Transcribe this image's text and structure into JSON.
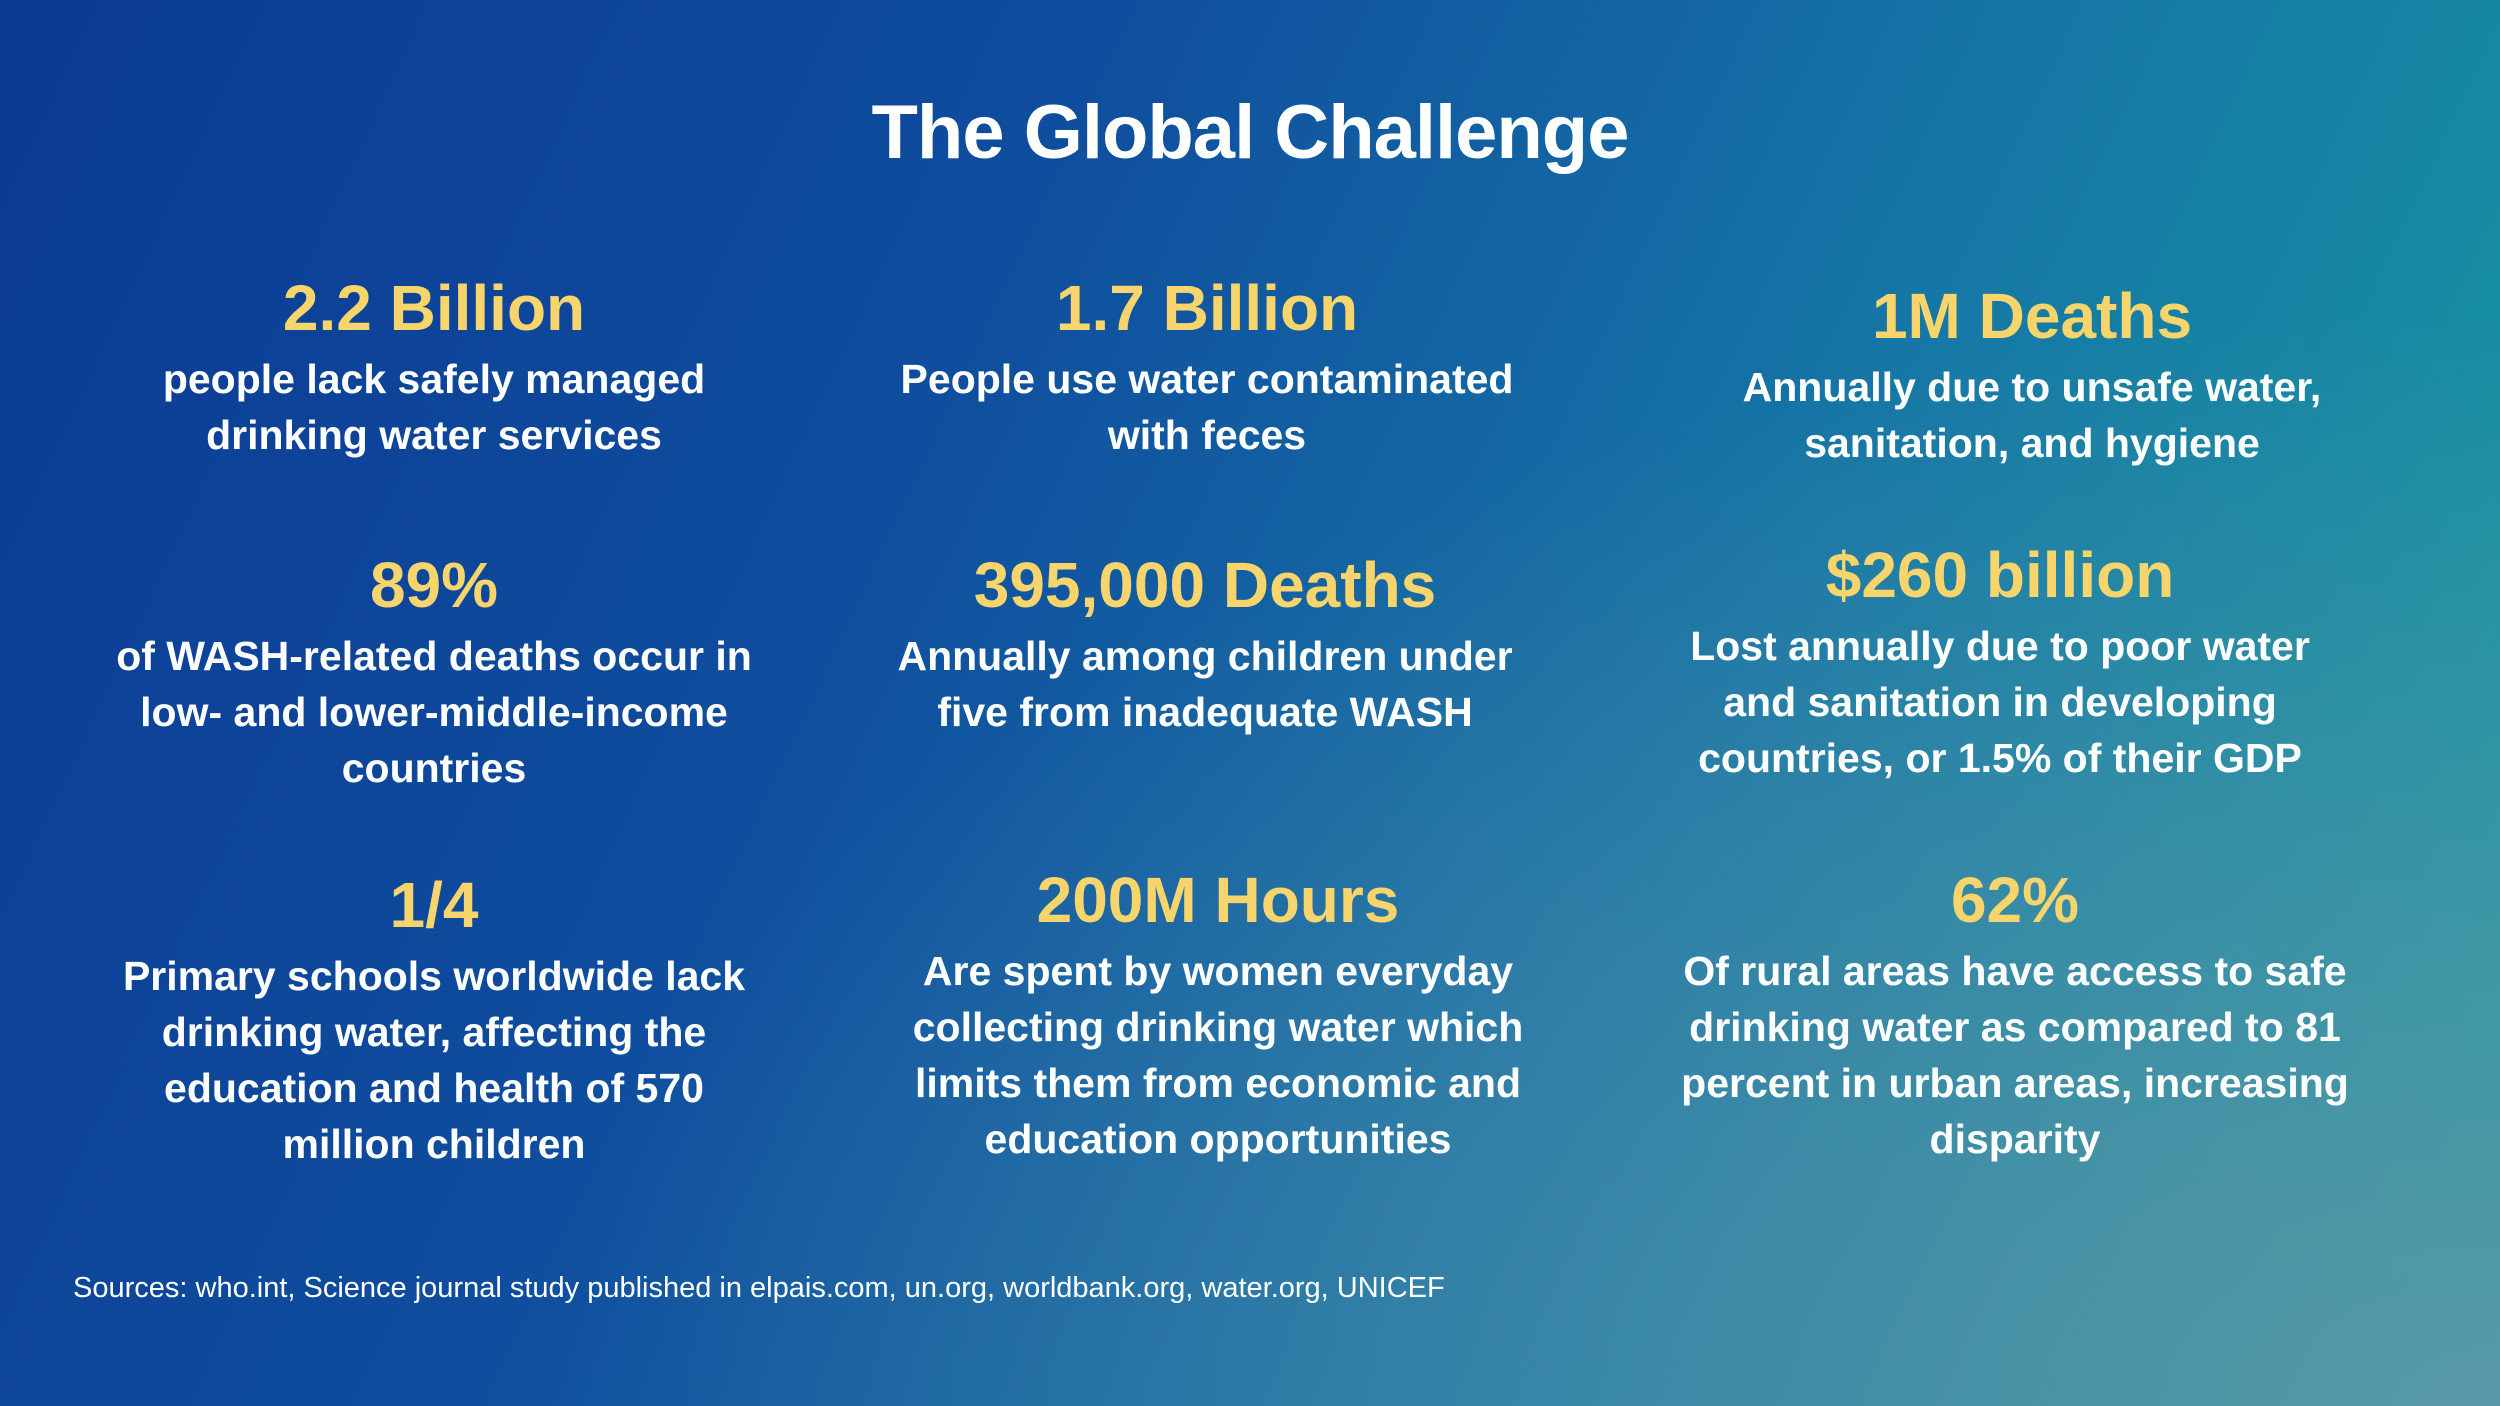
{
  "title": "The Global Challenge",
  "stats": [
    {
      "headline": "2.2 Billion",
      "lines": [
        "people lack safely managed",
        "drinking water services"
      ]
    },
    {
      "headline": "1.7 Billion",
      "lines": [
        "People use water contaminated",
        "with feces"
      ]
    },
    {
      "headline": "1M Deaths",
      "lines": [
        "Annually due to unsafe water,",
        "sanitation, and hygiene"
      ]
    },
    {
      "headline": "89%",
      "lines": [
        "of WASH-related deaths occur in",
        "low- and lower-middle-income",
        "countries"
      ]
    },
    {
      "headline": "395,000 Deaths",
      "lines": [
        "Annually among children under",
        "five from inadequate WASH"
      ]
    },
    {
      "headline": "$260 billion",
      "lines": [
        "Lost annually due to poor water",
        "and sanitation in developing",
        "countries, or 1.5% of their GDP"
      ]
    },
    {
      "headline": "1/4",
      "lines": [
        "Primary schools worldwide lack",
        "drinking water, affecting the",
        "education and health of 570",
        "million children"
      ]
    },
    {
      "headline": "200M Hours",
      "lines": [
        "Are spent by women everyday",
        "collecting drinking water which",
        "limits them from economic and",
        "education opportunities"
      ]
    },
    {
      "headline": "62%",
      "lines": [
        "Of rural areas have access to safe",
        "drinking water as compared to 81",
        "percent in urban areas, increasing",
        "disparity"
      ]
    }
  ],
  "sources": "Sources: who.int, Science journal study published in elpais.com, un.org, worldbank.org, water.org, UNICEF"
}
